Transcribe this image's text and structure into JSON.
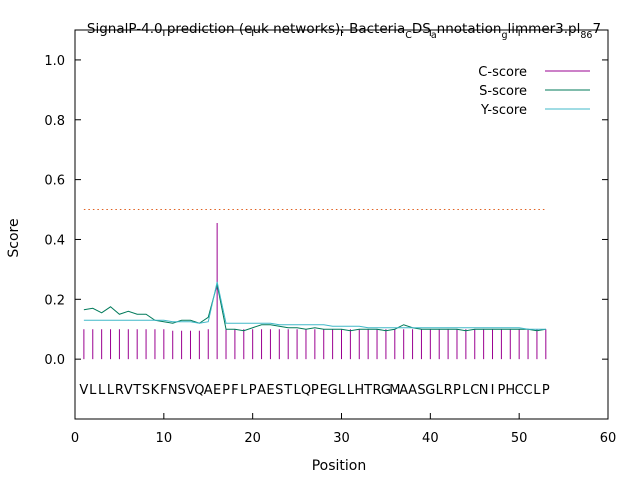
{
  "chart_data": {
    "type": "line",
    "title": {
      "parts": [
        {
          "text": "SignalP-4.0 prediction (euk networks): Bacteria",
          "sub": false
        },
        {
          "text": "C",
          "sub": true
        },
        {
          "text": "DS",
          "sub": false
        },
        {
          "text": "a",
          "sub": true
        },
        {
          "text": "nnotation",
          "sub": false
        },
        {
          "text": "g",
          "sub": true
        },
        {
          "text": "limmer3.pl",
          "sub": false
        },
        {
          "text": "8",
          "sub": true
        },
        {
          "text": "6",
          "sub": true
        },
        {
          "text": "7",
          "sub": false
        }
      ]
    },
    "xlabel": "Position",
    "ylabel": "Score",
    "xlim": [
      0,
      60
    ],
    "ylim": [
      -0.2,
      1.1
    ],
    "xticks": [
      0,
      10,
      20,
      30,
      40,
      50,
      60
    ],
    "yticks": [
      0.0,
      0.2,
      0.4,
      0.6,
      0.8,
      1.0
    ],
    "ytick_labels": [
      "0.0",
      "0.2",
      "0.4",
      "0.6",
      "0.8",
      "1.0"
    ],
    "threshold": {
      "y": 0.5,
      "x_start": 1,
      "x_end": 53,
      "color": "#e06020"
    },
    "sequence": [
      "V",
      "L",
      "L",
      "L",
      "R",
      "V",
      "T",
      "S",
      "K",
      "F",
      "N",
      "S",
      "V",
      "Q",
      "A",
      "E",
      "P",
      "F",
      "L",
      "P",
      "A",
      "E",
      "S",
      "T",
      "L",
      "Q",
      "P",
      "E",
      "G",
      "L",
      "L",
      "H",
      "T",
      "R",
      "G",
      "M",
      "A",
      "A",
      "S",
      "G",
      "L",
      "R",
      "P",
      "L",
      "C",
      "N",
      "I",
      "P",
      "H",
      "C",
      "C",
      "L",
      "P"
    ],
    "sequence_y": -0.1,
    "legend_position": "top-right",
    "series": [
      {
        "name": "C-score",
        "style": "impulses",
        "color": "#9a0090",
        "x": [
          1,
          2,
          3,
          4,
          5,
          6,
          7,
          8,
          9,
          10,
          11,
          12,
          13,
          14,
          15,
          16,
          17,
          18,
          19,
          20,
          21,
          22,
          23,
          24,
          25,
          26,
          27,
          28,
          29,
          30,
          31,
          32,
          33,
          34,
          35,
          36,
          37,
          38,
          39,
          40,
          41,
          42,
          43,
          44,
          45,
          46,
          47,
          48,
          49,
          50,
          51,
          52,
          53
        ],
        "values": [
          0.1,
          0.1,
          0.1,
          0.1,
          0.1,
          0.1,
          0.1,
          0.1,
          0.1,
          0.1,
          0.095,
          0.095,
          0.095,
          0.095,
          0.1,
          0.455,
          0.1,
          0.1,
          0.1,
          0.1,
          0.1,
          0.1,
          0.1,
          0.1,
          0.1,
          0.1,
          0.1,
          0.1,
          0.1,
          0.1,
          0.1,
          0.1,
          0.1,
          0.1,
          0.1,
          0.1,
          0.1,
          0.1,
          0.1,
          0.1,
          0.1,
          0.1,
          0.1,
          0.1,
          0.1,
          0.1,
          0.1,
          0.1,
          0.1,
          0.1,
          0.1,
          0.1,
          0.1
        ]
      },
      {
        "name": "S-score",
        "style": "line",
        "color": "#007a5a",
        "x": [
          1,
          2,
          3,
          4,
          5,
          6,
          7,
          8,
          9,
          10,
          11,
          12,
          13,
          14,
          15,
          16,
          17,
          18,
          19,
          20,
          21,
          22,
          23,
          24,
          25,
          26,
          27,
          28,
          29,
          30,
          31,
          32,
          33,
          34,
          35,
          36,
          37,
          38,
          39,
          40,
          41,
          42,
          43,
          44,
          45,
          46,
          47,
          48,
          49,
          50,
          51,
          52,
          53
        ],
        "values": [
          0.165,
          0.17,
          0.155,
          0.175,
          0.15,
          0.16,
          0.15,
          0.15,
          0.13,
          0.125,
          0.12,
          0.13,
          0.13,
          0.12,
          0.14,
          0.25,
          0.1,
          0.1,
          0.095,
          0.105,
          0.115,
          0.115,
          0.11,
          0.105,
          0.105,
          0.1,
          0.105,
          0.1,
          0.1,
          0.1,
          0.095,
          0.1,
          0.1,
          0.1,
          0.095,
          0.1,
          0.115,
          0.105,
          0.1,
          0.1,
          0.1,
          0.1,
          0.1,
          0.095,
          0.1,
          0.1,
          0.1,
          0.1,
          0.1,
          0.1,
          0.1,
          0.095,
          0.1
        ]
      },
      {
        "name": "Y-score",
        "style": "line",
        "color": "#40b8c8",
        "x": [
          1,
          2,
          3,
          4,
          5,
          6,
          7,
          8,
          9,
          10,
          11,
          12,
          13,
          14,
          15,
          16,
          17,
          18,
          19,
          20,
          21,
          22,
          23,
          24,
          25,
          26,
          27,
          28,
          29,
          30,
          31,
          32,
          33,
          34,
          35,
          36,
          37,
          38,
          39,
          40,
          41,
          42,
          43,
          44,
          45,
          46,
          47,
          48,
          49,
          50,
          51,
          52,
          53
        ],
        "values": [
          0.13,
          0.13,
          0.13,
          0.13,
          0.13,
          0.13,
          0.13,
          0.13,
          0.13,
          0.13,
          0.125,
          0.125,
          0.125,
          0.12,
          0.125,
          0.258,
          0.12,
          0.12,
          0.12,
          0.12,
          0.12,
          0.12,
          0.115,
          0.115,
          0.115,
          0.115,
          0.115,
          0.115,
          0.11,
          0.11,
          0.11,
          0.11,
          0.105,
          0.105,
          0.105,
          0.105,
          0.105,
          0.105,
          0.105,
          0.105,
          0.105,
          0.105,
          0.105,
          0.105,
          0.105,
          0.105,
          0.105,
          0.105,
          0.105,
          0.105,
          0.1,
          0.1,
          0.1
        ]
      }
    ]
  }
}
